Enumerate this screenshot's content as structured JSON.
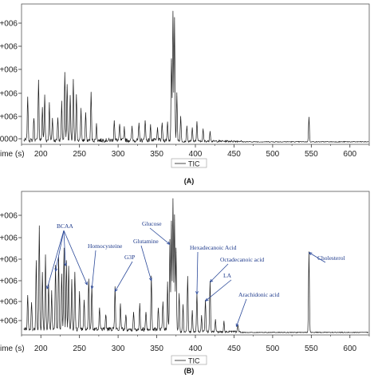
{
  "chart_data": [
    {
      "type": "line",
      "panel_label": "(A)",
      "xlabel": "ime (s)",
      "ylabel_ticks": [
        "e+006",
        "e+006",
        "e+006",
        "e+006",
        "e+006",
        "0000"
      ],
      "x_ticks": [
        200,
        250,
        300,
        350,
        400,
        450,
        500,
        550,
        600
      ],
      "xlim": [
        175,
        625
      ],
      "legend": {
        "entries": [
          "TIC"
        ],
        "placement": "bottom-center"
      },
      "series": [
        {
          "name": "TIC",
          "peaks": [
            {
              "x": 183,
              "y": 0.34
            },
            {
              "x": 191,
              "y": 0.18
            },
            {
              "x": 197,
              "y": 0.47
            },
            {
              "x": 202,
              "y": 0.25
            },
            {
              "x": 205,
              "y": 0.34
            },
            {
              "x": 211,
              "y": 0.28
            },
            {
              "x": 215,
              "y": 0.17
            },
            {
              "x": 222,
              "y": 0.18
            },
            {
              "x": 227,
              "y": 0.29
            },
            {
              "x": 231,
              "y": 0.53
            },
            {
              "x": 234,
              "y": 0.42
            },
            {
              "x": 238,
              "y": 0.33
            },
            {
              "x": 242,
              "y": 0.47
            },
            {
              "x": 246,
              "y": 0.36
            },
            {
              "x": 252,
              "y": 0.24
            },
            {
              "x": 258,
              "y": 0.21
            },
            {
              "x": 265,
              "y": 0.37
            },
            {
              "x": 272,
              "y": 0.12
            },
            {
              "x": 295,
              "y": 0.16
            },
            {
              "x": 302,
              "y": 0.12
            },
            {
              "x": 308,
              "y": 0.1
            },
            {
              "x": 318,
              "y": 0.1
            },
            {
              "x": 327,
              "y": 0.12
            },
            {
              "x": 335,
              "y": 0.16
            },
            {
              "x": 342,
              "y": 0.11
            },
            {
              "x": 351,
              "y": 0.09
            },
            {
              "x": 357,
              "y": 0.13
            },
            {
              "x": 364,
              "y": 0.14
            },
            {
              "x": 369,
              "y": 0.62
            },
            {
              "x": 371,
              "y": 1.0
            },
            {
              "x": 373,
              "y": 0.94
            },
            {
              "x": 376,
              "y": 0.35
            },
            {
              "x": 381,
              "y": 0.19
            },
            {
              "x": 389,
              "y": 0.12
            },
            {
              "x": 396,
              "y": 0.1
            },
            {
              "x": 402,
              "y": 0.15
            },
            {
              "x": 410,
              "y": 0.09
            },
            {
              "x": 419,
              "y": 0.08
            },
            {
              "x": 547,
              "y": 0.19
            }
          ]
        }
      ]
    },
    {
      "type": "line",
      "panel_label": "(B)",
      "xlabel": "ime (s)",
      "ylabel_ticks": [
        "e+006",
        "e+006",
        "e+006",
        "e+006",
        "e+006",
        "e+006"
      ],
      "x_ticks": [
        200,
        250,
        300,
        350,
        400,
        450,
        500,
        550,
        600
      ],
      "xlim": [
        175,
        625
      ],
      "legend": {
        "entries": [
          "TIC"
        ],
        "placement": "bottom-center"
      },
      "series": [
        {
          "name": "TIC",
          "peaks": [
            {
              "x": 183,
              "y": 0.26
            },
            {
              "x": 188,
              "y": 0.2
            },
            {
              "x": 194,
              "y": 0.52
            },
            {
              "x": 198,
              "y": 0.78
            },
            {
              "x": 202,
              "y": 0.42
            },
            {
              "x": 206,
              "y": 0.56
            },
            {
              "x": 210,
              "y": 0.33
            },
            {
              "x": 214,
              "y": 0.28
            },
            {
              "x": 219,
              "y": 0.48
            },
            {
              "x": 223,
              "y": 0.54
            },
            {
              "x": 227,
              "y": 0.41
            },
            {
              "x": 230,
              "y": 0.61
            },
            {
              "x": 233,
              "y": 0.52
            },
            {
              "x": 236,
              "y": 0.48
            },
            {
              "x": 240,
              "y": 0.36
            },
            {
              "x": 244,
              "y": 0.44
            },
            {
              "x": 250,
              "y": 0.28
            },
            {
              "x": 256,
              "y": 0.22
            },
            {
              "x": 262,
              "y": 0.38
            },
            {
              "x": 266,
              "y": 0.33
            },
            {
              "x": 276,
              "y": 0.17
            },
            {
              "x": 284,
              "y": 0.12
            },
            {
              "x": 296,
              "y": 0.31
            },
            {
              "x": 303,
              "y": 0.19
            },
            {
              "x": 310,
              "y": 0.12
            },
            {
              "x": 320,
              "y": 0.13
            },
            {
              "x": 328,
              "y": 0.2
            },
            {
              "x": 336,
              "y": 0.14
            },
            {
              "x": 343,
              "y": 0.39
            },
            {
              "x": 352,
              "y": 0.16
            },
            {
              "x": 358,
              "y": 0.2
            },
            {
              "x": 364,
              "y": 0.34
            },
            {
              "x": 367,
              "y": 0.66
            },
            {
              "x": 369,
              "y": 0.8
            },
            {
              "x": 371,
              "y": 1.0
            },
            {
              "x": 373,
              "y": 0.84
            },
            {
              "x": 375,
              "y": 0.6
            },
            {
              "x": 379,
              "y": 0.28
            },
            {
              "x": 384,
              "y": 0.2
            },
            {
              "x": 390,
              "y": 0.42
            },
            {
              "x": 396,
              "y": 0.16
            },
            {
              "x": 402,
              "y": 0.29
            },
            {
              "x": 408,
              "y": 0.12
            },
            {
              "x": 413,
              "y": 0.24
            },
            {
              "x": 419,
              "y": 0.38
            },
            {
              "x": 426,
              "y": 0.09
            },
            {
              "x": 437,
              "y": 0.08
            },
            {
              "x": 455,
              "y": 0.05
            },
            {
              "x": 547,
              "y": 0.6
            }
          ]
        }
      ],
      "annotations": [
        {
          "text": "BCAA",
          "targets": [
            {
              "x": 208,
              "y": 0.33
            },
            {
              "x": 219,
              "y": 0.46
            },
            {
              "x": 232,
              "y": 0.5
            },
            {
              "x": 260,
              "y": 0.36
            }
          ]
        },
        {
          "text": "Homocysteine",
          "targets": [
            {
              "x": 266,
              "y": 0.33
            }
          ]
        },
        {
          "text": "G3P",
          "targets": [
            {
              "x": 296,
              "y": 0.31
            }
          ]
        },
        {
          "text": "Glutamine",
          "targets": [
            {
              "x": 343,
              "y": 0.39
            }
          ]
        },
        {
          "text": "Glucose",
          "targets": [
            {
              "x": 367,
              "y": 0.66
            }
          ]
        },
        {
          "text": "Hexadecanoic Acid",
          "targets": [
            {
              "x": 402,
              "y": 0.29
            }
          ]
        },
        {
          "text": "Octadecanoic acid",
          "targets": [
            {
              "x": 419,
              "y": 0.38
            }
          ]
        },
        {
          "text": "LA",
          "targets": [
            {
              "x": 413,
              "y": 0.24
            }
          ]
        },
        {
          "text": "Arachidonic acid",
          "targets": [
            {
              "x": 453,
              "y": 0.05
            }
          ]
        },
        {
          "text": "Cholesterol",
          "targets": [
            {
              "x": 547,
              "y": 0.6
            }
          ]
        }
      ]
    }
  ]
}
